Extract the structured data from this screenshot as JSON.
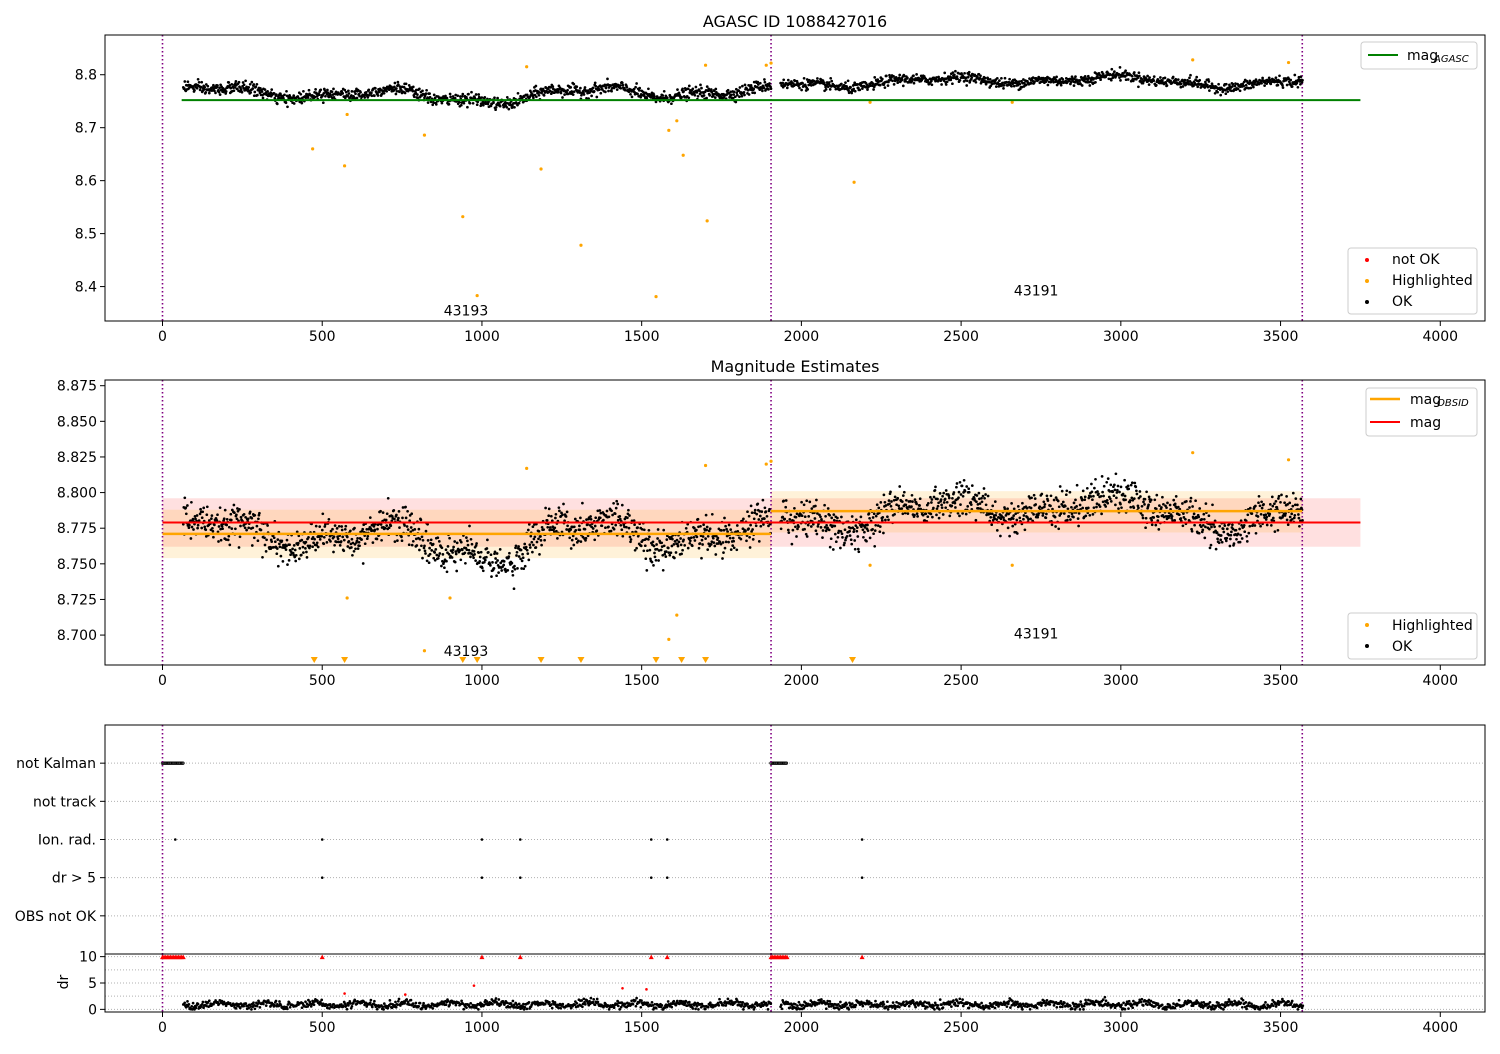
{
  "chart_data": [
    {
      "type": "scatter",
      "title": "AGASC ID 1088427016",
      "xlim": [
        -180,
        4140
      ],
      "ylim": [
        8.335,
        8.875
      ],
      "xticks": [
        0,
        500,
        1000,
        1500,
        2000,
        2500,
        3000,
        3500,
        4000
      ],
      "yticks": [
        8.4,
        8.5,
        8.6,
        8.7,
        8.8
      ],
      "ytick_labels": [
        "8.4",
        "8.5",
        "8.6",
        "8.7",
        "8.8"
      ],
      "vlines": [
        0,
        1905,
        3568
      ],
      "annotations": [
        {
          "text": "43193",
          "x": 950,
          "y": 8.355
        },
        {
          "text": "43191",
          "x": 2735,
          "y": 8.393
        }
      ],
      "hline": {
        "name": "mag_AGASC",
        "label_base": "mag",
        "label_sub": "AGASC",
        "y": 8.752,
        "x": [
          60,
          3750
        ],
        "color": "#008000"
      },
      "band_segments": [
        {
          "x": [
            65,
            1905
          ],
          "base": 8.763,
          "amp": 0.018,
          "noise": 0.008
        },
        {
          "x": [
            1935,
            3570
          ],
          "base": 8.788,
          "amp": 0.012,
          "noise": 0.007
        }
      ],
      "highlighted": [
        [
          470,
          8.66
        ],
        [
          570,
          8.628
        ],
        [
          578,
          8.725
        ],
        [
          820,
          8.686
        ],
        [
          940,
          8.532
        ],
        [
          985,
          8.383
        ],
        [
          1140,
          8.815
        ],
        [
          1185,
          8.622
        ],
        [
          1310,
          8.478
        ],
        [
          1545,
          8.381
        ],
        [
          1585,
          8.695
        ],
        [
          1610,
          8.713
        ],
        [
          1630,
          8.648
        ],
        [
          1700,
          8.818
        ],
        [
          1705,
          8.524
        ],
        [
          1890,
          8.818
        ],
        [
          1905,
          8.822
        ],
        [
          2165,
          8.597
        ],
        [
          2215,
          8.748
        ],
        [
          2660,
          8.748
        ],
        [
          3225,
          8.828
        ],
        [
          3525,
          8.823
        ]
      ],
      "legends": [
        {
          "position": "top-right",
          "entries": [
            {
              "label_base": "mag",
              "label_sub": "AGASC",
              "color": "#008000",
              "kind": "line"
            }
          ]
        },
        {
          "position": "bottom-right",
          "entries": [
            {
              "label": "not OK",
              "color": "#ff0000",
              "kind": "dot"
            },
            {
              "label": "Highlighted",
              "color": "#ffa500",
              "kind": "dot"
            },
            {
              "label": "OK",
              "color": "#000000",
              "kind": "dot"
            }
          ]
        }
      ]
    },
    {
      "type": "scatter",
      "title": "Magnitude Estimates",
      "xlim": [
        -180,
        4140
      ],
      "ylim": [
        8.679,
        8.879
      ],
      "xticks": [
        0,
        500,
        1000,
        1500,
        2000,
        2500,
        3000,
        3500,
        4000
      ],
      "yticks": [
        8.7,
        8.725,
        8.75,
        8.775,
        8.8,
        8.825,
        8.85,
        8.875
      ],
      "ytick_labels": [
        "8.700",
        "8.725",
        "8.750",
        "8.775",
        "8.800",
        "8.825",
        "8.850",
        "8.875"
      ],
      "vlines": [
        0,
        1905,
        3568
      ],
      "annotations": [
        {
          "text": "43193",
          "x": 950,
          "y": 8.689
        },
        {
          "text": "43191",
          "x": 2735,
          "y": 8.701
        }
      ],
      "mag": {
        "y": 8.779,
        "x": [
          0,
          3750
        ],
        "band": [
          8.762,
          8.796
        ],
        "color": "#ff0000"
      },
      "mag_obsid": [
        {
          "x": [
            0,
            1905
          ],
          "y": 8.771,
          "band": [
            8.754,
            8.788
          ]
        },
        {
          "x": [
            1905,
            3568
          ],
          "y": 8.787,
          "band": [
            8.772,
            8.801
          ]
        }
      ],
      "band_segments": [
        {
          "x": [
            65,
            1905
          ],
          "base": 8.768,
          "amp": 0.018,
          "noise": 0.009
        },
        {
          "x": [
            1935,
            3570
          ],
          "base": 8.787,
          "amp": 0.014,
          "noise": 0.009
        }
      ],
      "highlighted": [
        [
          578,
          8.726
        ],
        [
          900,
          8.726
        ],
        [
          1140,
          8.817
        ],
        [
          1585,
          8.697
        ],
        [
          1610,
          8.714
        ],
        [
          1700,
          8.819
        ],
        [
          1890,
          8.82
        ],
        [
          1905,
          8.822
        ],
        [
          2215,
          8.749
        ],
        [
          2660,
          8.749
        ],
        [
          3225,
          8.828
        ],
        [
          3525,
          8.823
        ],
        [
          820,
          8.689
        ]
      ],
      "offscale_markers": [
        475,
        570,
        940,
        985,
        1185,
        1310,
        1545,
        1625,
        1700,
        2160
      ],
      "legends": [
        {
          "position": "top-right",
          "entries": [
            {
              "label_base": "mag",
              "label_sub": "OBSID",
              "color": "#ffa500",
              "kind": "line"
            },
            {
              "label": "mag",
              "color": "#ff0000",
              "kind": "line"
            }
          ]
        },
        {
          "position": "bottom-right",
          "entries": [
            {
              "label": "Highlighted",
              "color": "#ffa500",
              "kind": "dot"
            },
            {
              "label": "OK",
              "color": "#000000",
              "kind": "dot"
            }
          ]
        }
      ]
    },
    {
      "type": "scatter",
      "title": "",
      "xlim": [
        -180,
        4140
      ],
      "vlines": [
        0,
        1905,
        3568
      ],
      "flag_rows": [
        "not Kalman",
        "not track",
        "Ion. rad.",
        "dr > 5",
        "OBS not OK"
      ],
      "flag_points": {
        "not Kalman": {
          "ranges": [
            [
              0,
              65
            ],
            [
              1905,
              1955
            ]
          ]
        },
        "not track": {
          "ranges": []
        },
        "Ion. rad.": {
          "points": [
            40,
            500,
            1000,
            1120,
            1530,
            1580,
            2190
          ]
        },
        "dr > 5": {
          "points": [
            500,
            1000,
            1120,
            1530,
            1580,
            2190
          ]
        },
        "OBS not OK": {
          "ranges": []
        }
      }
    },
    {
      "type": "scatter",
      "title": "",
      "xlim": [
        -180,
        4140
      ],
      "ylim": [
        -0.5,
        10.5
      ],
      "ylabel": "dr",
      "yticks": [
        0,
        5,
        10
      ],
      "ytick_labels": [
        "0",
        "5",
        "10"
      ],
      "xticks": [
        0,
        500,
        1000,
        1500,
        2000,
        2500,
        3000,
        3500,
        4000
      ],
      "vlines": [
        0,
        1905,
        3568
      ],
      "capped_points": [
        500,
        1000,
        1120,
        1530,
        1580,
        2190
      ],
      "capped_ranges": [
        [
          0,
          65
        ],
        [
          1905,
          1955
        ]
      ],
      "outliers": [
        [
          570,
          3.0
        ],
        [
          975,
          4.5
        ],
        [
          1440,
          4.0
        ],
        [
          1515,
          3.8
        ],
        [
          760,
          2.8
        ],
        [
          2950,
          2.3
        ]
      ]
    }
  ]
}
